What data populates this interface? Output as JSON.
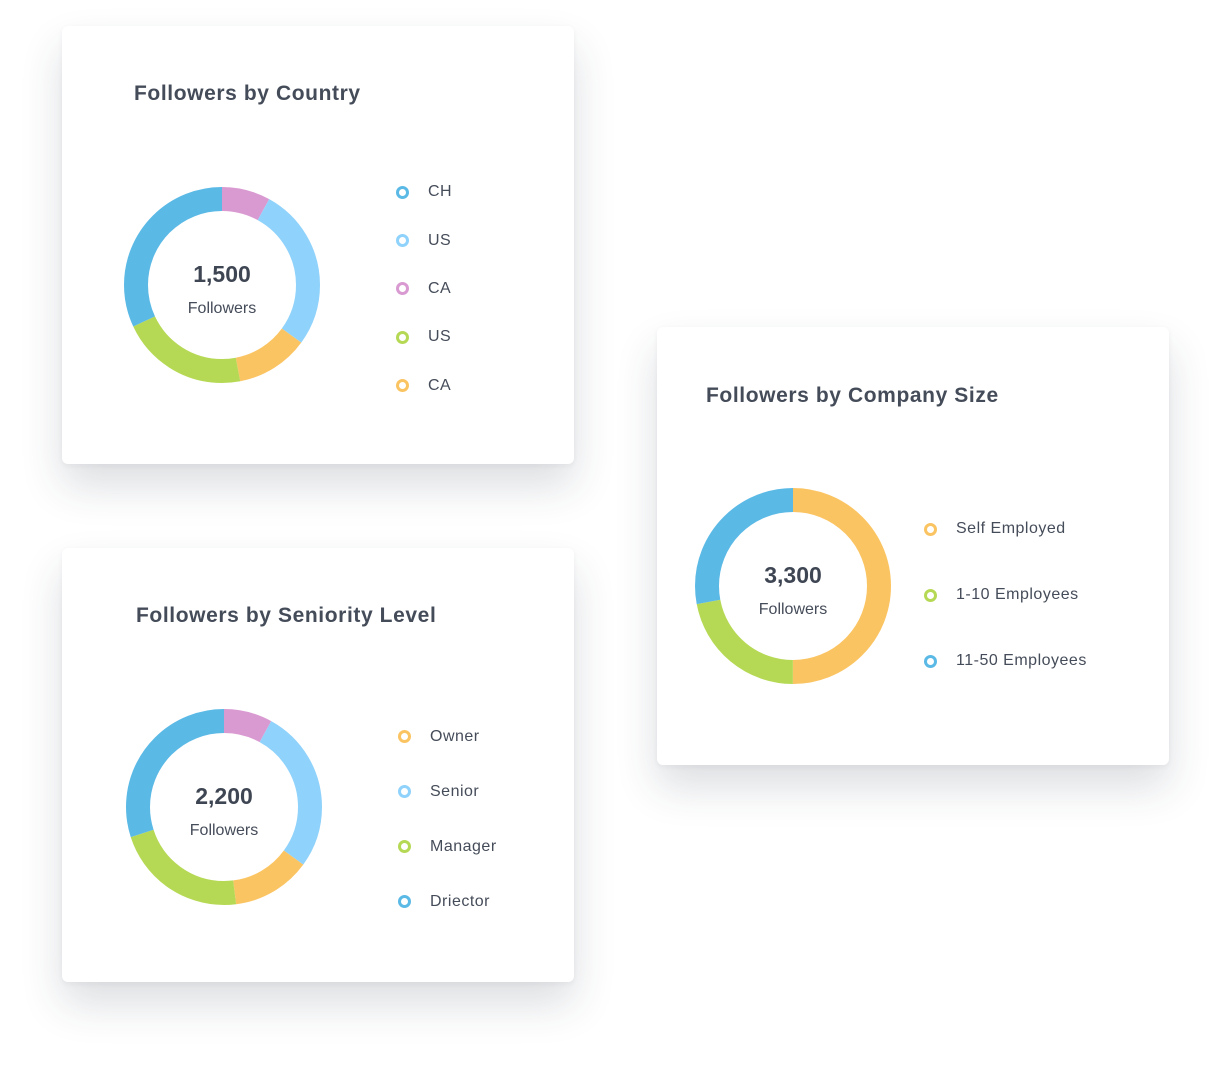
{
  "chart_data": [
    {
      "type": "pie",
      "title": "Followers by Country",
      "center_value": "1,500",
      "center_label": "Followers",
      "categories": [
        "CH",
        "US",
        "CA",
        "US",
        "CA"
      ],
      "values": [
        32,
        27,
        8,
        21,
        12
      ],
      "colors": [
        "#5bb9e6",
        "#8fd2fb",
        "#d99ad1",
        "#b6d955",
        "#fbc462"
      ],
      "segment_order": [
        2,
        1,
        4,
        3,
        0
      ],
      "legend_position": "right"
    },
    {
      "type": "pie",
      "title": "Followers by Seniority Level",
      "center_value": "2,200",
      "center_label": "Followers",
      "categories": [
        "Owner",
        "Senior",
        "Manager",
        "Driector"
      ],
      "values": [
        13,
        27,
        22,
        30
      ],
      "colors": [
        "#fbc462",
        "#8fd2fb",
        "#b6d955",
        "#5bb9e6"
      ],
      "extra_segment": {
        "value": 8,
        "color": "#d99ad1"
      },
      "segment_order": [
        "extra",
        1,
        0,
        2,
        3
      ],
      "legend_position": "right"
    },
    {
      "type": "pie",
      "title": "Followers by Company Size",
      "center_value": "3,300",
      "center_label": "Followers",
      "categories": [
        "Self Employed",
        "1-10 Employees",
        "11-50 Employees"
      ],
      "values": [
        50,
        22,
        28
      ],
      "colors": [
        "#fbc462",
        "#b6d955",
        "#5bb9e6"
      ],
      "segment_order": [
        0,
        1,
        2
      ],
      "legend_position": "right"
    }
  ]
}
